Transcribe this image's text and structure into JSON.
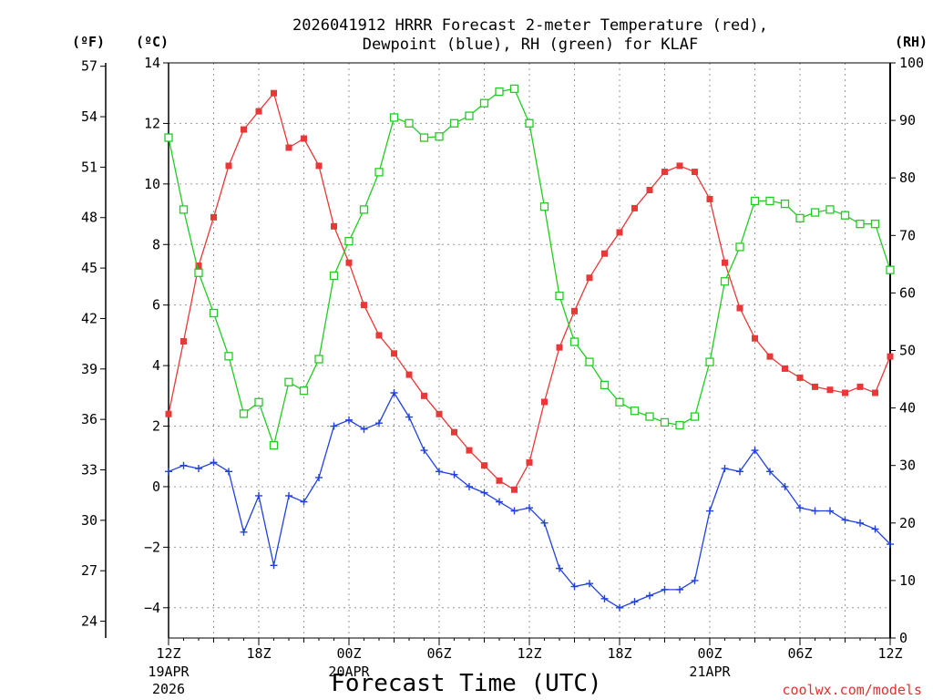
{
  "chart_data": {
    "type": "line",
    "title": "2026041912 HRRR Forecast 2-meter Temperature (red),",
    "subtitle": "Dewpoint (blue), RH (green) for KLAF",
    "xlabel": "Forecast Time (UTC)",
    "credit": "coolwx.com/models",
    "units": {
      "fahrenheit": "(ºF)",
      "celsius": "(ºC)",
      "rh": "(RH)"
    },
    "x_forecast_hours": [
      0,
      1,
      2,
      3,
      4,
      5,
      6,
      7,
      8,
      9,
      10,
      11,
      12,
      13,
      14,
      15,
      16,
      17,
      18,
      19,
      20,
      21,
      22,
      23,
      24,
      25,
      26,
      27,
      28,
      29,
      30,
      31,
      32,
      33,
      34,
      35,
      36,
      37,
      38,
      39,
      40,
      41,
      42,
      43,
      44,
      45,
      46,
      47,
      48
    ],
    "x_range": [
      0,
      48
    ],
    "x_ticks": [
      {
        "hour": 0,
        "label": "12Z",
        "sub1": "19APR",
        "sub2": "2026"
      },
      {
        "hour": 6,
        "label": "18Z",
        "sub1": "",
        "sub2": ""
      },
      {
        "hour": 12,
        "label": "00Z",
        "sub1": "20APR",
        "sub2": ""
      },
      {
        "hour": 18,
        "label": "06Z",
        "sub1": "",
        "sub2": ""
      },
      {
        "hour": 24,
        "label": "12Z",
        "sub1": "",
        "sub2": ""
      },
      {
        "hour": 30,
        "label": "18Z",
        "sub1": "",
        "sub2": ""
      },
      {
        "hour": 36,
        "label": "00Z",
        "sub1": "21APR",
        "sub2": ""
      },
      {
        "hour": 42,
        "label": "06Z",
        "sub1": "",
        "sub2": ""
      },
      {
        "hour": 48,
        "label": "12Z",
        "sub1": "",
        "sub2": ""
      }
    ],
    "y_celsius_range": [
      -5,
      14
    ],
    "y_celsius_ticks": [
      "14",
      "12",
      "10",
      "8",
      "6",
      "4",
      "2",
      "0",
      "−2",
      "−4"
    ],
    "y_fahrenheit_ticks": [
      "57",
      "54",
      "51",
      "48",
      "45",
      "42",
      "39",
      "36",
      "33",
      "30",
      "27",
      "24"
    ],
    "y_rh_range": [
      0,
      100
    ],
    "y_rh_ticks": [
      "100",
      "90",
      "80",
      "70",
      "60",
      "50",
      "40",
      "30",
      "20",
      "10",
      "0"
    ],
    "series": [
      {
        "name": "2-meter Temperature",
        "unit": "C",
        "color": "#e83838",
        "marker": "filled-square",
        "values": [
          2.4,
          4.8,
          7.3,
          8.9,
          10.6,
          11.8,
          12.4,
          13.0,
          11.2,
          11.5,
          10.6,
          8.6,
          7.4,
          6.0,
          5.0,
          4.4,
          3.7,
          3.0,
          2.4,
          1.8,
          1.2,
          0.7,
          0.2,
          -0.1,
          0.8,
          2.8,
          4.6,
          5.8,
          6.9,
          7.7,
          8.4,
          9.2,
          9.8,
          10.4,
          10.6,
          10.4,
          9.5,
          7.4,
          5.9,
          4.9,
          4.3,
          3.9,
          3.6,
          3.3,
          3.2,
          3.1,
          3.3,
          3.1,
          4.3
        ]
      },
      {
        "name": "Dewpoint",
        "unit": "C",
        "color": "#2040e0",
        "marker": "plus",
        "values": [
          0.5,
          0.7,
          0.6,
          0.8,
          0.5,
          -1.5,
          -0.3,
          -2.6,
          -0.3,
          -0.5,
          0.3,
          2.0,
          2.2,
          1.9,
          2.1,
          3.1,
          2.3,
          1.2,
          0.5,
          0.4,
          0.0,
          -0.2,
          -0.5,
          -0.8,
          -0.7,
          -1.2,
          -2.7,
          -3.3,
          -3.2,
          -3.7,
          -4.0,
          -3.8,
          -3.6,
          -3.4,
          -3.4,
          -3.1,
          -0.8,
          0.6,
          0.5,
          1.2,
          0.5,
          0.0,
          -0.7,
          -0.8,
          -0.8,
          -1.1,
          -1.2,
          -1.4,
          -1.9
        ]
      },
      {
        "name": "Relative Humidity",
        "unit": "%",
        "color": "#22cc22",
        "marker": "open-square",
        "values": [
          87,
          74.5,
          63.5,
          56.5,
          49,
          39,
          41,
          33.5,
          44.5,
          43,
          48.5,
          63,
          69,
          74.5,
          81,
          90.5,
          89.5,
          87,
          87.2,
          89.5,
          90.8,
          93,
          95,
          95.5,
          89.5,
          75,
          59.5,
          51.5,
          48,
          44,
          41,
          39.5,
          38.5,
          37.5,
          37,
          38.5,
          48,
          62,
          68,
          76,
          76,
          75.5,
          73,
          74,
          74.5,
          73.5,
          72,
          72,
          64
        ]
      }
    ]
  }
}
